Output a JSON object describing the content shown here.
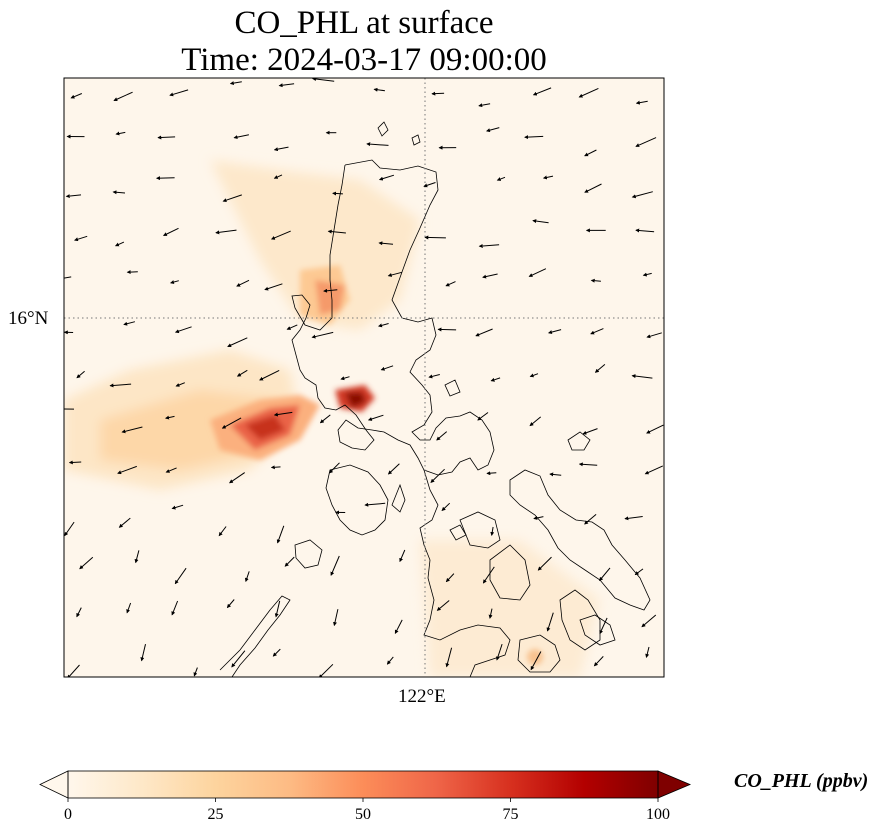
{
  "title": {
    "line1": "CO_PHL at surface",
    "line2": "Time: 2024-03-17 09:00:00"
  },
  "axes": {
    "lat_tick": "16°N",
    "lon_tick": "122°E"
  },
  "colorbar": {
    "label": "CO_PHL (ppbv)",
    "ticks": [
      "0",
      "25",
      "50",
      "75",
      "100"
    ],
    "min": 0,
    "max": 100,
    "colormap": "OrRd",
    "extend": "both",
    "colors": [
      "#fff7ec",
      "#fdd49e",
      "#fc8d59",
      "#d7301f",
      "#7f0000"
    ]
  },
  "map": {
    "background": "#fef6eb",
    "coastline_color": "#000000",
    "gridline_style": "dotted",
    "wind_vectors": "shown",
    "plume_peak": "up to 100 ppbv"
  }
}
